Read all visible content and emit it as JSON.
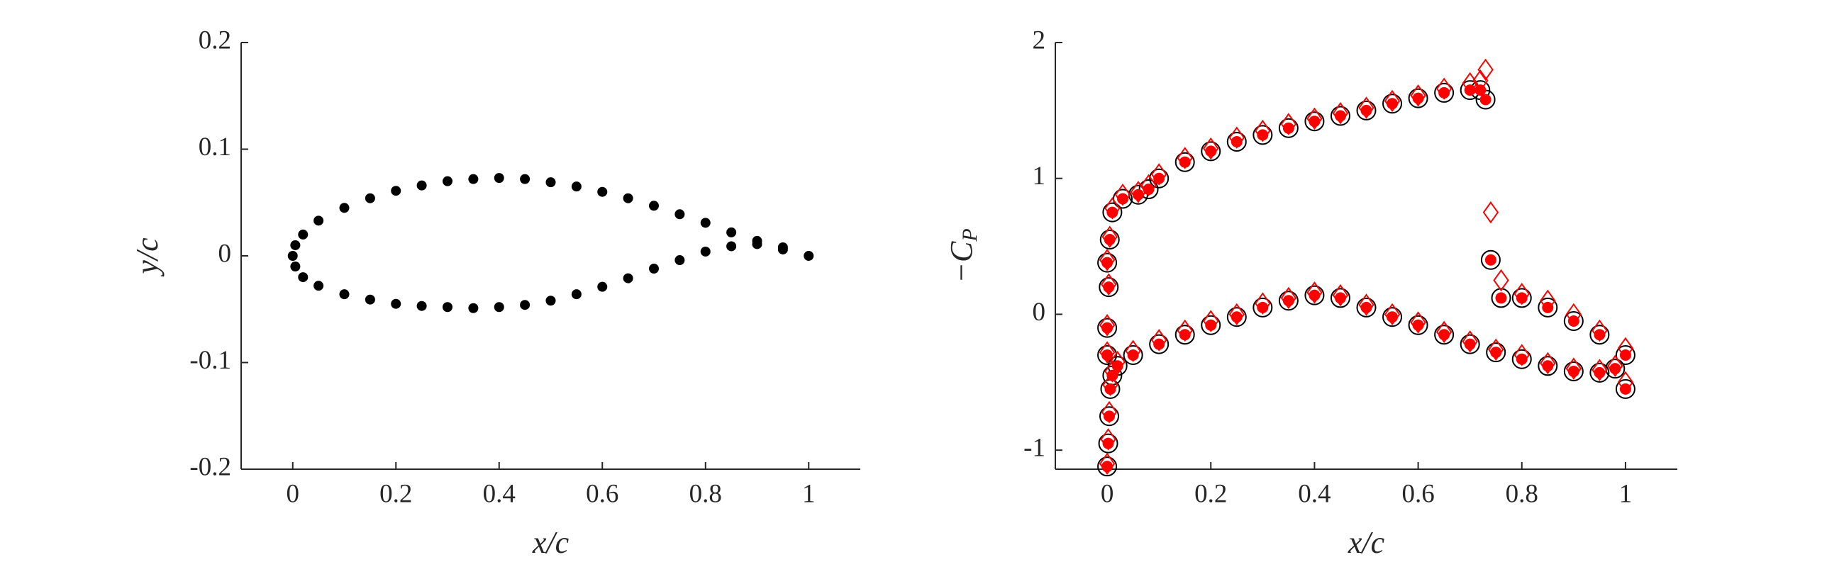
{
  "chart_data": [
    {
      "type": "scatter",
      "xlabel": "x/c",
      "ylabel": [
        "y/c"
      ],
      "xlim": [
        -0.1,
        1.1
      ],
      "ylim": [
        -0.2,
        0.2
      ],
      "xticks": [
        0,
        0.2,
        0.4,
        0.6,
        0.8,
        1
      ],
      "yticks": [
        -0.2,
        -0.1,
        0,
        0.1,
        0.2
      ],
      "x": [
        0,
        0.005,
        0.02,
        0.05,
        0.1,
        0.15,
        0.2,
        0.25,
        0.3,
        0.35,
        0.4,
        0.45,
        0.5,
        0.55,
        0.6,
        0.65,
        0.7,
        0.75,
        0.8,
        0.85,
        0.9,
        0.95,
        1.0,
        0.005,
        0.02,
        0.05,
        0.1,
        0.15,
        0.2,
        0.25,
        0.3,
        0.35,
        0.4,
        0.45,
        0.5,
        0.55,
        0.6,
        0.65,
        0.7,
        0.75,
        0.8,
        0.85,
        0.9,
        0.95
      ],
      "series": [
        {
          "color": "#000000",
          "marker": "circle-filled",
          "values": [
            0,
            0.01,
            0.02,
            0.033,
            0.045,
            0.054,
            0.061,
            0.066,
            0.07,
            0.072,
            0.073,
            0.072,
            0.069,
            0.065,
            0.06,
            0.054,
            0.047,
            0.039,
            0.031,
            0.022,
            0.014,
            0.006,
            0,
            -0.01,
            -0.02,
            -0.028,
            -0.036,
            -0.041,
            -0.045,
            -0.047,
            -0.048,
            -0.049,
            -0.048,
            -0.046,
            -0.042,
            -0.036,
            -0.029,
            -0.021,
            -0.012,
            -0.004,
            0.004,
            0.009,
            0.011,
            0.008
          ]
        }
      ]
    },
    {
      "type": "scatter",
      "xlabel": "x/c",
      "ylabel": [
        "−C",
        "P"
      ],
      "xlim": [
        -0.1,
        1.1
      ],
      "ylim": [
        -1.14,
        2
      ],
      "xticks": [
        0,
        0.2,
        0.4,
        0.6,
        0.8,
        1
      ],
      "yticks": [
        -1,
        0,
        1,
        2
      ],
      "x": [
        0.003,
        0.005,
        0.01,
        0.03,
        0.06,
        0.08,
        0.1,
        0.15,
        0.2,
        0.25,
        0.3,
        0.35,
        0.4,
        0.45,
        0.5,
        0.55,
        0.6,
        0.65,
        0.7,
        0.72,
        0.73,
        0.74,
        0.76,
        0.8,
        0.85,
        0.9,
        0.95,
        1.0,
        0,
        0.002,
        0.004,
        0.006,
        0.01,
        0.02,
        0.05,
        0.1,
        0.15,
        0.2,
        0.25,
        0.3,
        0.35,
        0.4,
        0.45,
        0.5,
        0.55,
        0.6,
        0.65,
        0.7,
        0.75,
        0.8,
        0.85,
        0.9,
        0.95,
        0.98,
        1.0,
        0,
        0,
        0
      ],
      "series": [
        {
          "color": "#000000",
          "marker": "circle-open",
          "values": [
            0.2,
            0.55,
            0.75,
            0.85,
            0.88,
            0.92,
            1.0,
            1.12,
            1.2,
            1.27,
            1.32,
            1.37,
            1.42,
            1.46,
            1.5,
            1.55,
            1.59,
            1.63,
            1.65,
            1.65,
            1.58,
            0.4,
            0.12,
            0.12,
            0.05,
            -0.05,
            -0.15,
            -0.3,
            -1.12,
            -0.95,
            -0.75,
            -0.55,
            -0.45,
            -0.38,
            -0.3,
            -0.22,
            -0.15,
            -0.08,
            -0.02,
            0.05,
            0.1,
            0.14,
            0.12,
            0.05,
            -0.02,
            -0.08,
            -0.15,
            -0.22,
            -0.28,
            -0.33,
            -0.38,
            -0.42,
            -0.43,
            -0.4,
            -0.55,
            -0.1,
            -0.3,
            0.38
          ]
        },
        {
          "color": "#ff0000",
          "marker": "circle-filled",
          "values": [
            0.2,
            0.55,
            0.75,
            0.85,
            0.88,
            0.92,
            1.0,
            1.12,
            1.2,
            1.27,
            1.32,
            1.37,
            1.42,
            1.46,
            1.5,
            1.55,
            1.59,
            1.63,
            1.65,
            1.65,
            1.58,
            0.4,
            0.12,
            0.12,
            0.05,
            -0.05,
            -0.15,
            -0.3,
            -1.12,
            -0.95,
            -0.75,
            -0.55,
            -0.45,
            -0.38,
            -0.3,
            -0.22,
            -0.15,
            -0.08,
            -0.02,
            0.05,
            0.1,
            0.14,
            0.12,
            0.05,
            -0.02,
            -0.08,
            -0.15,
            -0.22,
            -0.28,
            -0.33,
            -0.38,
            -0.42,
            -0.43,
            -0.4,
            -0.55,
            -0.1,
            -0.3,
            0.38
          ]
        },
        {
          "color": "#ff0000",
          "marker": "diamond",
          "values": [
            0.22,
            0.57,
            0.78,
            0.88,
            0.9,
            0.95,
            1.03,
            1.15,
            1.22,
            1.3,
            1.35,
            1.4,
            1.44,
            1.48,
            1.52,
            1.57,
            1.61,
            1.66,
            1.7,
            1.72,
            1.8,
            0.75,
            0.25,
            0.15,
            0.1,
            0.0,
            -0.12,
            -0.25,
            -1.1,
            -0.92,
            -0.72,
            -0.52,
            -0.42,
            -0.35,
            -0.27,
            -0.19,
            -0.12,
            -0.05,
            0.0,
            0.08,
            0.12,
            0.16,
            0.14,
            0.07,
            0.0,
            -0.06,
            -0.13,
            -0.2,
            -0.26,
            -0.3,
            -0.36,
            -0.4,
            -0.41,
            -0.38,
            -0.5,
            -0.08,
            -0.28,
            0.4
          ]
        }
      ]
    }
  ]
}
